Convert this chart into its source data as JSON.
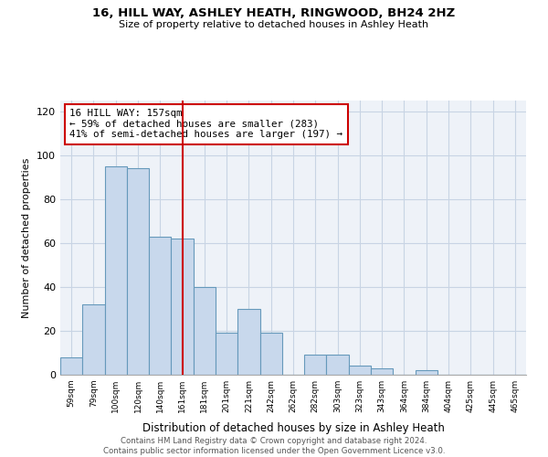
{
  "title": "16, HILL WAY, ASHLEY HEATH, RINGWOOD, BH24 2HZ",
  "subtitle": "Size of property relative to detached houses in Ashley Heath",
  "xlabel": "Distribution of detached houses by size in Ashley Heath",
  "ylabel": "Number of detached properties",
  "bin_labels": [
    "59sqm",
    "79sqm",
    "100sqm",
    "120sqm",
    "140sqm",
    "161sqm",
    "181sqm",
    "201sqm",
    "221sqm",
    "242sqm",
    "262sqm",
    "282sqm",
    "303sqm",
    "323sqm",
    "343sqm",
    "364sqm",
    "384sqm",
    "404sqm",
    "425sqm",
    "445sqm",
    "465sqm"
  ],
  "bar_heights": [
    8,
    32,
    95,
    94,
    63,
    62,
    40,
    19,
    30,
    19,
    0,
    9,
    9,
    4,
    3,
    0,
    2,
    0,
    0,
    0,
    0
  ],
  "bar_color": "#c8d8ec",
  "bar_edge_color": "#6699bb",
  "vline_x_index": 5,
  "vline_color": "#cc0000",
  "annotation_text": "16 HILL WAY: 157sqm\n← 59% of detached houses are smaller (283)\n41% of semi-detached houses are larger (197) →",
  "annotation_box_color": "white",
  "annotation_box_edge": "#cc0000",
  "ylim": [
    0,
    125
  ],
  "yticks": [
    0,
    20,
    40,
    60,
    80,
    100,
    120
  ],
  "footer_text": "Contains HM Land Registry data © Crown copyright and database right 2024.\nContains public sector information licensed under the Open Government Licence v3.0.",
  "bg_color": "white",
  "plot_bg_color": "#eef2f8",
  "grid_color": "#c8d4e4"
}
